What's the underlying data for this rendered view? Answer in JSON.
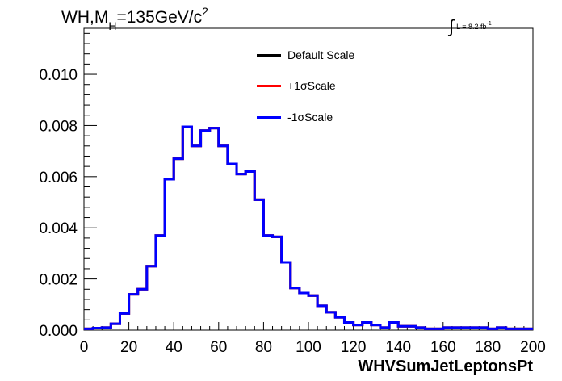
{
  "chart_data": {
    "type": "line",
    "title": "WH,M",
    "title_sub": "H",
    "title_rest": "=135GeV/c",
    "title_sup": "2",
    "lumi_label": "L = 8.2 fb",
    "lumi_sup": "-1",
    "xlabel": "WHVSumJetLeptonsPt",
    "ylabel": "",
    "xlim": [
      0,
      200
    ],
    "ylim": [
      0,
      0.0118
    ],
    "x_ticks": [
      "0",
      "20",
      "40",
      "60",
      "80",
      "100",
      "120",
      "140",
      "160",
      "180",
      "200"
    ],
    "y_ticks": [
      "0.000",
      "0.002",
      "0.004",
      "0.006",
      "0.008",
      "0.010"
    ],
    "bin_width": 4,
    "bin_edges_start": 0,
    "series": [
      {
        "name": "Default Scale",
        "color": "#000000"
      },
      {
        "name": "+1σScale",
        "color": "#ff0000"
      },
      {
        "name": "-1σScale",
        "color": "#0000ff"
      }
    ],
    "values": [
      5e-05,
      8e-05,
      0.0001,
      0.00025,
      0.00065,
      0.0014,
      0.0016,
      0.0025,
      0.0037,
      0.0059,
      0.0067,
      0.00795,
      0.0072,
      0.0078,
      0.0079,
      0.0072,
      0.0065,
      0.0061,
      0.0062,
      0.0051,
      0.0037,
      0.00365,
      0.00265,
      0.00165,
      0.00145,
      0.00135,
      0.00095,
      0.0007,
      0.0005,
      0.0003,
      0.0002,
      0.0003,
      0.0002,
      0.0001,
      0.0003,
      0.00015,
      0.00015,
      0.0001,
      5e-05,
      5e-05,
      0.0001,
      0.0001,
      0.0001,
      0.0001,
      0.0001,
      5e-05,
      0.0001,
      5e-05,
      5e-05,
      5e-05
    ]
  }
}
